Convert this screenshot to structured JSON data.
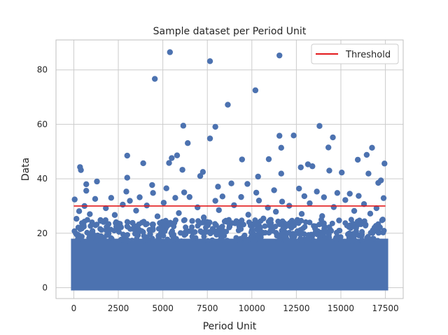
{
  "chart_data": {
    "type": "scatter",
    "title": "Sample dataset per Period Unit",
    "xlabel": "Period Unit",
    "ylabel": "Data",
    "xlim": [
      -1000,
      18500
    ],
    "ylim": [
      -4,
      91
    ],
    "xticks": [
      0,
      2500,
      5000,
      7500,
      10000,
      12500,
      15000,
      17500
    ],
    "yticks": [
      0,
      20,
      40,
      60,
      80
    ],
    "grid": true,
    "legend_position": "top-right",
    "colors": {
      "points": "#4c72b0",
      "threshold": "#e31a1c",
      "grid": "#cccccc",
      "axes": "#bfbfbf"
    },
    "series": [
      {
        "name": "Data",
        "kind": "scatter",
        "x_range": [
          0,
          17500
        ],
        "dense_band_max": 18,
        "outliers": [
          [
            5400,
            86.5
          ],
          [
            11550,
            85.3
          ],
          [
            7650,
            83.2
          ],
          [
            4550,
            76.7
          ],
          [
            10200,
            72.5
          ],
          [
            8650,
            67.2
          ],
          [
            6150,
            59.5
          ],
          [
            7950,
            59.1
          ],
          [
            13800,
            59.4
          ],
          [
            11550,
            55.8
          ],
          [
            12350,
            55.9
          ],
          [
            14550,
            55.2
          ],
          [
            7650,
            54.8
          ],
          [
            6400,
            53.1
          ],
          [
            11650,
            51.4
          ],
          [
            14300,
            51.5
          ],
          [
            16750,
            51.4
          ],
          [
            16450,
            48.8
          ],
          [
            3000,
            48.5
          ],
          [
            5800,
            48.6
          ],
          [
            5500,
            47.6
          ],
          [
            10950,
            47.2
          ],
          [
            9450,
            47.1
          ],
          [
            15950,
            47.0
          ],
          [
            5350,
            45.8
          ],
          [
            3900,
            45.7
          ],
          [
            17450,
            45.6
          ],
          [
            13150,
            45.3
          ],
          [
            13400,
            44.6
          ],
          [
            12750,
            44.2
          ],
          [
            350,
            44.3
          ],
          [
            400,
            43.2
          ],
          [
            6100,
            43.3
          ],
          [
            14350,
            43.0
          ],
          [
            7250,
            42.5
          ],
          [
            15050,
            42.3
          ],
          [
            11650,
            41.9
          ],
          [
            16550,
            41.9
          ],
          [
            7100,
            41.0
          ],
          [
            10350,
            40.8
          ],
          [
            3000,
            40.4
          ],
          [
            17250,
            39.4
          ],
          [
            1300,
            39.0
          ],
          [
            17100,
            38.5
          ],
          [
            8850,
            38.3
          ],
          [
            700,
            38.0
          ],
          [
            9750,
            38.1
          ],
          [
            4400,
            37.7
          ],
          [
            8100,
            37.1
          ],
          [
            12650,
            36.4
          ],
          [
            5200,
            36.5
          ],
          [
            2950,
            35.3
          ],
          [
            6200,
            35.0
          ],
          [
            13650,
            35.3
          ],
          [
            14800,
            34.8
          ],
          [
            4450,
            34.8
          ],
          [
            700,
            35.6
          ],
          [
            11250,
            35.8
          ],
          [
            10250,
            34.9
          ],
          [
            15500,
            34.5
          ],
          [
            3700,
            33.2
          ],
          [
            5700,
            33.0
          ],
          [
            9400,
            33.3
          ],
          [
            16000,
            33.7
          ],
          [
            2100,
            33.0
          ],
          [
            8350,
            33.5
          ],
          [
            12950,
            33.6
          ],
          [
            6500,
            33.3
          ],
          [
            1200,
            32.6
          ],
          [
            14050,
            33.2
          ],
          [
            17400,
            32.9
          ],
          [
            50,
            32.4
          ],
          [
            3150,
            31.9
          ],
          [
            10400,
            32.0
          ],
          [
            7950,
            31.9
          ],
          [
            11700,
            31.6
          ],
          [
            15250,
            32.2
          ],
          [
            2750,
            30.5
          ],
          [
            5050,
            31.2
          ],
          [
            13250,
            31.0
          ],
          [
            16300,
            30.7
          ],
          [
            4100,
            30.2
          ],
          [
            9000,
            30.3
          ],
          [
            600,
            30.0
          ],
          [
            12100,
            30.1
          ],
          [
            14600,
            29.6
          ],
          [
            6950,
            29.5
          ],
          [
            17000,
            29.2
          ],
          [
            1800,
            29.2
          ],
          [
            10900,
            29.4
          ],
          [
            300,
            28.1
          ],
          [
            3500,
            28.3
          ],
          [
            8150,
            28.5
          ],
          [
            11350,
            27.9
          ],
          [
            15750,
            28.2
          ],
          [
            900,
            27.0
          ],
          [
            5900,
            27.4
          ],
          [
            12800,
            27.1
          ],
          [
            16650,
            27.2
          ],
          [
            2300,
            26.7
          ],
          [
            9800,
            26.8
          ],
          [
            4700,
            26.2
          ],
          [
            13950,
            26.3
          ],
          [
            7300,
            25.8
          ],
          [
            150,
            25.3
          ],
          [
            17350,
            25.0
          ],
          [
            10650,
            25.4
          ],
          [
            1500,
            24.8
          ],
          [
            14900,
            24.7
          ],
          [
            6650,
            24.5
          ],
          [
            8600,
            24.2
          ],
          [
            3300,
            23.8
          ],
          [
            12250,
            23.9
          ],
          [
            15900,
            23.5
          ],
          [
            550,
            22.9
          ],
          [
            5250,
            22.7
          ],
          [
            11000,
            22.8
          ],
          [
            2650,
            22.2
          ],
          [
            9300,
            22.4
          ],
          [
            16950,
            22.1
          ],
          [
            7800,
            21.6
          ],
          [
            13550,
            21.8
          ],
          [
            4250,
            21.2
          ],
          [
            1050,
            20.8
          ],
          [
            10000,
            21.0
          ],
          [
            14450,
            20.9
          ],
          [
            6300,
            20.4
          ],
          [
            12550,
            20.6
          ],
          [
            17150,
            20.3
          ],
          [
            1950,
            19.8
          ],
          [
            8400,
            19.9
          ],
          [
            15400,
            19.6
          ],
          [
            3600,
            19.3
          ],
          [
            11800,
            19.2
          ],
          [
            5600,
            19.0
          ]
        ]
      },
      {
        "name": "Threshold",
        "kind": "line",
        "x": [
          0,
          17500
        ],
        "y": [
          30,
          30
        ]
      }
    ],
    "legend": [
      {
        "label": "Threshold",
        "color": "#e31a1c"
      }
    ]
  }
}
